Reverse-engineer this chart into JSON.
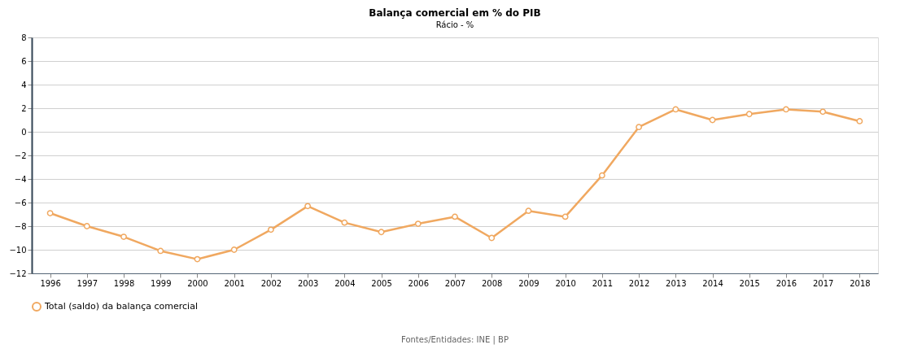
{
  "chart_data": {
    "type": "line",
    "title": "Balança comercial em % do PIB",
    "subtitle": "Rácio - %",
    "categories": [
      "1996",
      "1997",
      "1998",
      "1999",
      "2000",
      "2001",
      "2002",
      "2003",
      "2004",
      "2005",
      "2006",
      "2007",
      "2008",
      "2009",
      "2010",
      "2011",
      "2012",
      "2013",
      "2014",
      "2015",
      "2016",
      "2017",
      "2018"
    ],
    "series": [
      {
        "name": "Total (saldo) da balança comercial",
        "color": "#f0a860",
        "values": [
          -6.9,
          -8.0,
          -8.9,
          -10.1,
          -10.8,
          -10.0,
          -8.3,
          -6.3,
          -7.7,
          -8.5,
          -7.8,
          -7.2,
          -9.0,
          -6.7,
          -7.2,
          -3.7,
          0.4,
          1.9,
          1.0,
          1.5,
          1.9,
          1.7,
          0.9
        ]
      }
    ],
    "ylim": [
      -12,
      8
    ],
    "yticks": [
      -12,
      -10,
      -8,
      -6,
      -4,
      -2,
      0,
      2,
      4,
      6,
      8
    ],
    "grid": "y",
    "legend": "bottom",
    "marker": "circle",
    "line_style": "solid",
    "annotations": [
      "Fontes/Entidades: INE | BP"
    ]
  }
}
